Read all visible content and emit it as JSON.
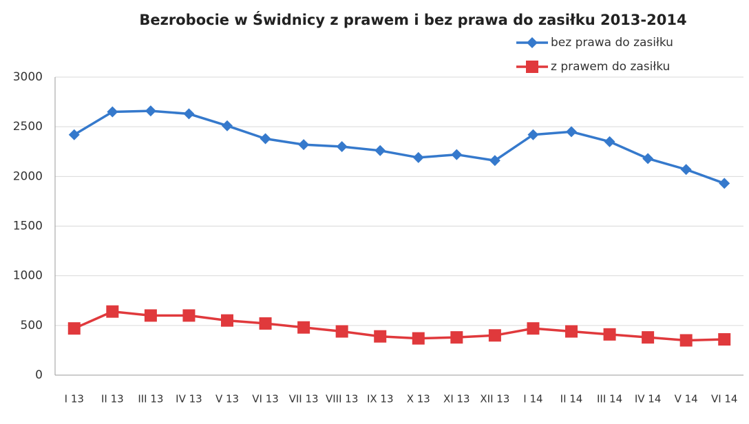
{
  "chart_data": {
    "type": "line",
    "title": "Bezrobocie w Świdnicy z prawem i bez prawa do zasiłku 2013-2014",
    "categories": [
      "I 13",
      "II 13",
      "III 13",
      "IV 13",
      "V 13",
      "VI 13",
      "VII 13",
      "VIII 13",
      "IX 13",
      "X 13",
      "XI 13",
      "XII 13",
      "I 14",
      "II 14",
      "III 14",
      "IV 14",
      "V 14",
      "VI 14"
    ],
    "series": [
      {
        "name": "bez prawa do zasiłku",
        "color": "#3579cc",
        "marker": "diamond",
        "values": [
          2420,
          2650,
          2660,
          2630,
          2510,
          2380,
          2320,
          2300,
          2260,
          2190,
          2220,
          2160,
          2420,
          2450,
          2350,
          2180,
          2070,
          1930
        ]
      },
      {
        "name": "z prawem do zasiłku",
        "color": "#e0393c",
        "marker": "square",
        "values": [
          470,
          640,
          600,
          600,
          550,
          520,
          480,
          440,
          390,
          370,
          380,
          400,
          470,
          440,
          410,
          380,
          350,
          360
        ]
      }
    ],
    "ylim": [
      0,
      3000
    ],
    "yticks": [
      0,
      500,
      1000,
      1500,
      2000,
      2500,
      3000
    ],
    "grid": true,
    "legend": "top-right"
  }
}
